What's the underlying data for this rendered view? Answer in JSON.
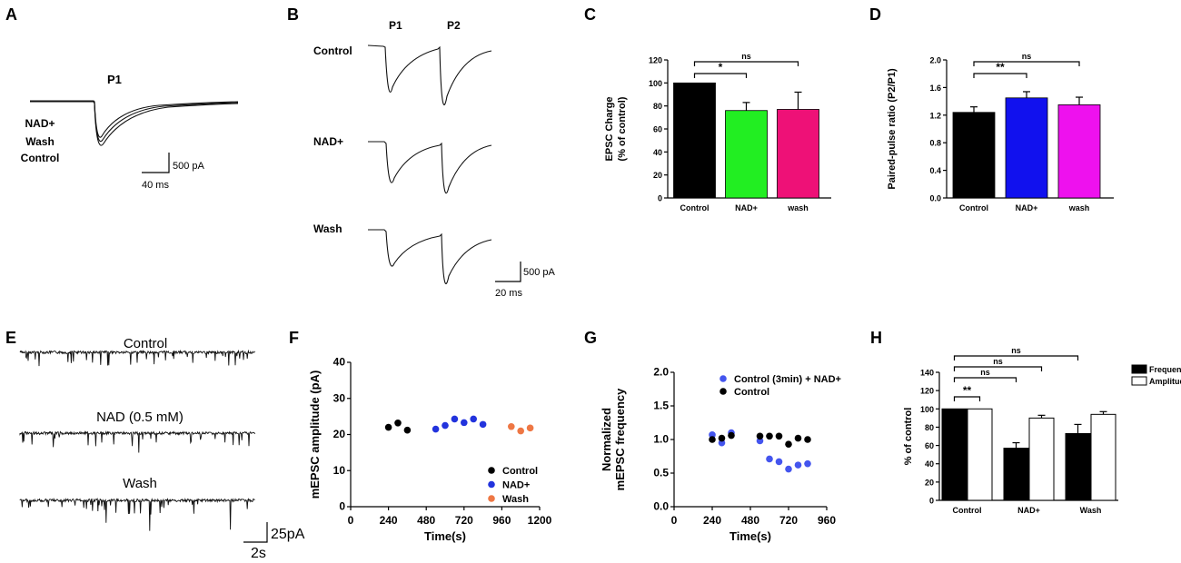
{
  "panels": {
    "A": {
      "letter": "A",
      "pulse_label": "P1",
      "legend_lines": [
        "NAD+",
        "Wash",
        "Control"
      ],
      "scale_y": "500 pA",
      "scale_x": "40 ms"
    },
    "B": {
      "letter": "B",
      "pulse_labels": [
        "P1",
        "P2"
      ],
      "row_labels": [
        "Control",
        "NAD+",
        "Wash"
      ],
      "scale_y": "500 pA",
      "scale_x": "20 ms"
    },
    "C": {
      "letter": "C"
    },
    "D": {
      "letter": "D"
    },
    "E": {
      "letter": "E",
      "trace_labels": [
        "Control",
        "NAD (0.5 mM)",
        "Wash"
      ],
      "scale_y": "25pA",
      "scale_x": "2s"
    },
    "F": {
      "letter": "F"
    },
    "G": {
      "letter": "G"
    },
    "H": {
      "letter": "H"
    }
  },
  "chart_data": [
    {
      "id": "C",
      "type": "bar",
      "categories": [
        "Control",
        "NAD+",
        "wash"
      ],
      "values": [
        100,
        76,
        77
      ],
      "errors": [
        0,
        7,
        15
      ],
      "colors": [
        "#000000",
        "#22ee22",
        "#ee1177"
      ],
      "ylabel_lines": [
        "EPSC Charge",
        "(% of control)"
      ],
      "ylim": [
        0,
        120
      ],
      "yticks": [
        0,
        20,
        40,
        60,
        80,
        100,
        120
      ],
      "significance": [
        {
          "from": 0,
          "to": 1,
          "label": "*"
        },
        {
          "from": 0,
          "to": 2,
          "label": "ns"
        }
      ]
    },
    {
      "id": "D",
      "type": "bar",
      "categories": [
        "Control",
        "NAD+",
        "wash"
      ],
      "values": [
        1.24,
        1.45,
        1.35
      ],
      "errors": [
        0.08,
        0.09,
        0.11
      ],
      "colors": [
        "#000000",
        "#1111ee",
        "#ee11ee"
      ],
      "ylabel_lines": [
        "Paired-pulse ratio (P2/P1)"
      ],
      "ylim": [
        0,
        2.0
      ],
      "yticks": [
        "0.0",
        "0.4",
        "0.8",
        "1.2",
        "1.6",
        "2.0"
      ],
      "significance": [
        {
          "from": 0,
          "to": 1,
          "label": "**"
        },
        {
          "from": 0,
          "to": 2,
          "label": "ns"
        }
      ]
    },
    {
      "id": "F",
      "type": "scatter",
      "xlabel": "Time(s)",
      "ylabel": "mEPSC amplitude (pA)",
      "xlim": [
        0,
        1200
      ],
      "ylim": [
        0,
        40
      ],
      "xticks": [
        0,
        240,
        480,
        720,
        960,
        1200
      ],
      "yticks": [
        0,
        10,
        20,
        30,
        40
      ],
      "legend_position": "bottom-right",
      "series": [
        {
          "name": "Control",
          "color": "#000000",
          "x": [
            240,
            300,
            360
          ],
          "y": [
            22.0,
            23.2,
            21.2
          ]
        },
        {
          "name": "NAD+",
          "color": "#2233dd",
          "x": [
            540,
            600,
            660,
            720,
            780,
            840
          ],
          "y": [
            21.5,
            22.5,
            24.3,
            23.3,
            24.3,
            22.8
          ]
        },
        {
          "name": "Wash",
          "color": "#ee7744",
          "x": [
            1020,
            1080,
            1140
          ],
          "y": [
            22.2,
            21.0,
            21.8
          ]
        }
      ]
    },
    {
      "id": "G",
      "type": "scatter",
      "xlabel": "Time(s)",
      "ylabel_lines": [
        "Normalized",
        "mEPSC frequency"
      ],
      "xlim": [
        0,
        960
      ],
      "ylim": [
        0,
        2.0
      ],
      "xticks": [
        0,
        240,
        480,
        720,
        960
      ],
      "yticks": [
        "0.0",
        "0.5",
        "1.0",
        "1.5",
        "2.0"
      ],
      "legend_position": "top-right",
      "series": [
        {
          "name": "Control (3min) + NAD+",
          "color": "#4455ee",
          "x": [
            240,
            300,
            360,
            540,
            600,
            660,
            720,
            780,
            840
          ],
          "y": [
            1.07,
            0.95,
            1.1,
            0.98,
            0.71,
            0.67,
            0.56,
            0.62,
            0.64
          ]
        },
        {
          "name": "Control",
          "color": "#000000",
          "x": [
            240,
            300,
            360,
            540,
            600,
            660,
            720,
            780,
            840
          ],
          "y": [
            1.0,
            1.02,
            1.06,
            1.05,
            1.05,
            1.05,
            0.93,
            1.02,
            1.0
          ]
        }
      ]
    },
    {
      "id": "H",
      "type": "bar",
      "categories": [
        "Control",
        "NAD+",
        "Wash"
      ],
      "series": [
        {
          "name": "Frequency",
          "color": "#000000",
          "values": [
            100,
            57,
            73
          ],
          "errors": [
            0,
            6,
            10
          ]
        },
        {
          "name": "Amplitude",
          "color": "#ffffff",
          "values": [
            100,
            90,
            94
          ],
          "errors": [
            0,
            3,
            3
          ]
        }
      ],
      "ylabel": "% of control",
      "ylim": [
        0,
        140
      ],
      "yticks": [
        0,
        20,
        40,
        60,
        80,
        100,
        120,
        140
      ],
      "legend_position": "top-right",
      "significance": [
        {
          "from": 0,
          "to": 1,
          "label": "**"
        },
        {
          "from": 0,
          "to": 2,
          "label": "ns"
        },
        {
          "from": 0,
          "to": 3,
          "label": "ns"
        },
        {
          "from": 0,
          "to": 4,
          "label": "ns"
        }
      ]
    }
  ]
}
